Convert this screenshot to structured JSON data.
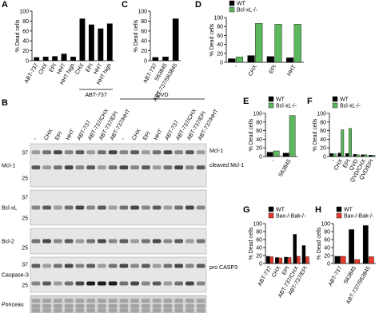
{
  "chart_data": [
    {
      "type": "bar",
      "panel": "A",
      "ylabel": "% Dead cells",
      "categories": [
        "ABT-737",
        "CHX",
        "EPI",
        "HHT",
        "HHT high",
        "CHX",
        "EPI",
        "HHT",
        "HHT high"
      ],
      "values": [
        7,
        8,
        9,
        14,
        8,
        85,
        73,
        65,
        75
      ],
      "color": "#000000",
      "group_label": "ABT-737",
      "ylim": [
        0,
        100
      ],
      "yticks": [
        0,
        20,
        40,
        60,
        80,
        100
      ]
    },
    {
      "type": "bar",
      "panel": "C",
      "ylabel": "% Dead cells",
      "categories": [
        "ABT-737",
        "S63845",
        "ABT-737/S63845"
      ],
      "values": [
        7,
        8,
        85
      ],
      "color": "#000000",
      "ylim": [
        0,
        100
      ],
      "yticks": [
        0,
        20,
        40,
        60,
        80,
        100
      ]
    },
    {
      "type": "bar",
      "panel": "D",
      "ylabel": "% Dead cells",
      "categories": [
        "-",
        "CHX",
        "EPI",
        "HHT"
      ],
      "series": [
        {
          "name": "WT",
          "color": "#000000",
          "values": [
            8,
            15,
            13,
            10
          ]
        },
        {
          "name": "Bcl-xL-/-",
          "color": "#5cb85c",
          "values": [
            12,
            87,
            85,
            85
          ]
        }
      ],
      "ylim": [
        0,
        100
      ],
      "yticks": [
        0,
        20,
        40,
        60,
        80,
        100
      ]
    },
    {
      "type": "bar",
      "panel": "E",
      "ylabel": "% Dead cells",
      "categories": [
        "-",
        "S63845"
      ],
      "series": [
        {
          "name": "WT",
          "color": "#000000",
          "values": [
            10,
            8
          ]
        },
        {
          "name": "Bcl-xL-/-",
          "color": "#5cb85c",
          "values": [
            13,
            95
          ]
        }
      ],
      "ylim": [
        0,
        100
      ],
      "yticks": [
        0,
        20,
        40,
        60,
        80,
        100
      ]
    },
    {
      "type": "bar",
      "panel": "F",
      "ylabel": "% Dead cells",
      "categories": [
        "-",
        "CHX",
        "EPI",
        "QVD",
        "QVD/CHX",
        "QVD/EPI"
      ],
      "series": [
        {
          "name": "WT",
          "color": "#000000",
          "values": [
            7,
            8,
            7,
            5,
            4,
            3
          ]
        },
        {
          "name": "Bcl-xL-/-",
          "color": "#5cb85c",
          "values": [
            6,
            62,
            65,
            4,
            4,
            3
          ]
        }
      ],
      "ylim": [
        0,
        100
      ],
      "yticks": [
        0,
        20,
        40,
        60,
        80,
        100
      ]
    },
    {
      "type": "bar",
      "panel": "G",
      "ylabel": "% Dead cells",
      "categories": [
        "ABT-737",
        "CHX",
        "EPI",
        "ABT-737/CHX",
        "ABT-737/EPI"
      ],
      "series": [
        {
          "name": "WT",
          "color": "#000000",
          "values": [
            18,
            15,
            16,
            73,
            45
          ]
        },
        {
          "name": "Bax-/-Bak-/-",
          "color": "#e8392b",
          "values": [
            17,
            14,
            15,
            18,
            17
          ]
        }
      ],
      "ylim": [
        0,
        100
      ],
      "yticks": [
        0,
        20,
        40,
        60,
        80,
        100
      ]
    },
    {
      "type": "bar",
      "panel": "H",
      "ylabel": "% Dead cells",
      "categories": [
        "ABT-737",
        "S63845",
        "ABT-737/S63845"
      ],
      "series": [
        {
          "name": "WT",
          "color": "#000000",
          "values": [
            18,
            85,
            95
          ]
        },
        {
          "name": "Bax-/-Bak-/-",
          "color": "#e8392b",
          "values": [
            18,
            10,
            17
          ]
        }
      ],
      "ylim": [
        0,
        100
      ],
      "yticks": [
        0,
        20,
        40,
        60,
        80,
        100
      ]
    }
  ],
  "blot": {
    "panel": "B",
    "qvd": "QVD",
    "lanes": [
      "-",
      "CHX",
      "EPI",
      "HHT",
      "ABT-737",
      "ABT-737/CHX",
      "ABT-737/EPI",
      "ABT-737/HHT",
      "-",
      "CHX",
      "EPI",
      "HHT",
      "ABT-737",
      "ABT-737/CHX",
      "ABT-737/EPI",
      "ABT-737/HHT"
    ],
    "rows": [
      {
        "label": "Mcl-1",
        "markers": [
          "37",
          "25"
        ]
      },
      {
        "label": "Bcl-xL",
        "markers": [
          "37",
          "25"
        ]
      },
      {
        "label": "Bcl-2",
        "markers": [
          "25"
        ]
      },
      {
        "label": "Caspase-3",
        "markers": [
          "37",
          "25"
        ]
      },
      {
        "label": "Ponceau",
        "markers": []
      }
    ],
    "annotations": [
      "Mcl-1",
      "cleaved Mcl-1",
      "pro CASP3"
    ]
  }
}
